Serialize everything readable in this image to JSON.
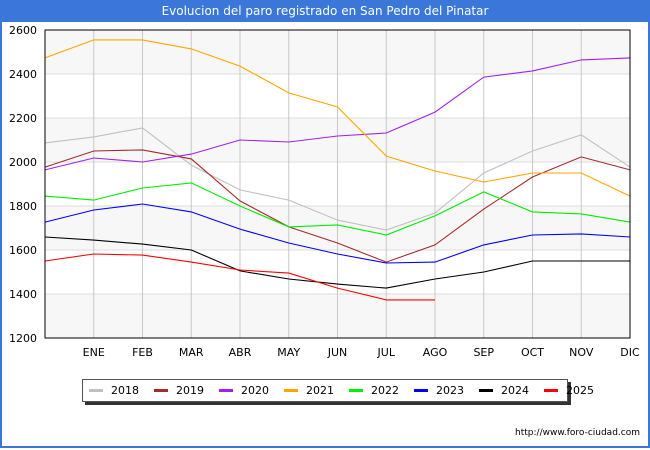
{
  "title": "Evolucion del paro registrado en San Pedro del Pinatar",
  "source": "http://www.foro-ciudad.com",
  "chart_data": {
    "type": "line",
    "title": "Evolucion del paro registrado en San Pedro del Pinatar",
    "xlabel": "",
    "ylabel": "",
    "categories": [
      "",
      "ENE",
      "FEB",
      "MAR",
      "ABR",
      "MAY",
      "JUN",
      "JUL",
      "AGO",
      "SEP",
      "OCT",
      "NOV",
      "DIC"
    ],
    "ylim": [
      1200,
      2600
    ],
    "yticks": [
      1200,
      1400,
      1600,
      1800,
      2000,
      2200,
      2400,
      2600
    ],
    "grid": true,
    "legend_position": "bottom",
    "series": [
      {
        "name": "2018",
        "color": "#c0c0c0",
        "values": [
          2087,
          2114,
          2155,
          1986,
          1873,
          1827,
          1736,
          1691,
          1768,
          1950,
          2050,
          2123,
          1977
        ]
      },
      {
        "name": "2019",
        "color": "#a52a2a",
        "values": [
          1977,
          2050,
          2055,
          2014,
          1823,
          1705,
          1632,
          1545,
          1623,
          1786,
          1932,
          2023,
          1964
        ]
      },
      {
        "name": "2020",
        "color": "#a020f0",
        "values": [
          1964,
          2018,
          2000,
          2036,
          2100,
          2091,
          2118,
          2132,
          2227,
          2386,
          2414,
          2464,
          2473
        ]
      },
      {
        "name": "2021",
        "color": "#ffa500",
        "values": [
          2473,
          2555,
          2555,
          2514,
          2436,
          2314,
          2250,
          2027,
          1959,
          1909,
          1950,
          1950,
          1845
        ]
      },
      {
        "name": "2022",
        "color": "#00ee00",
        "values": [
          1845,
          1827,
          1882,
          1905,
          1800,
          1705,
          1714,
          1668,
          1755,
          1864,
          1773,
          1764,
          1727
        ]
      },
      {
        "name": "2023",
        "color": "#0000ff",
        "values": [
          1727,
          1782,
          1809,
          1773,
          1695,
          1632,
          1582,
          1541,
          1545,
          1623,
          1668,
          1673,
          1659
        ]
      },
      {
        "name": "2024",
        "color": "#000000",
        "values": [
          1659,
          1645,
          1627,
          1600,
          1505,
          1468,
          1445,
          1427,
          1468,
          1500,
          1550,
          1550,
          1550
        ]
      },
      {
        "name": "2025",
        "color": "#ff0000",
        "values": [
          1550,
          1582,
          1577,
          1545,
          1509,
          1495,
          1427,
          1373,
          1373,
          null,
          null,
          null,
          null
        ]
      }
    ]
  }
}
